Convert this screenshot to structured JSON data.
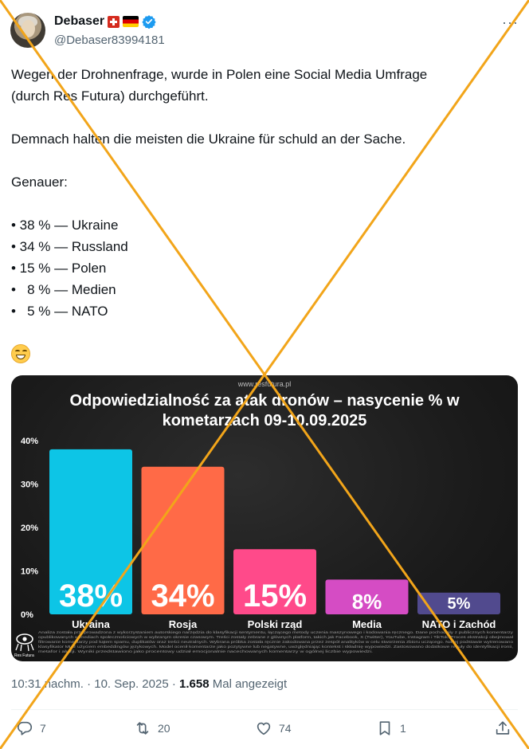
{
  "author": {
    "name": "Debaser",
    "handle": "@Debaser83994181",
    "more_label": "···"
  },
  "tweet": {
    "lines": [
      "Wegen der Drohnenfrage, wurde in Polen eine Social Media Umfrage",
      "(durch Res Futura) durchgeführt.",
      "",
      "Demnach halten die meisten die Ukraine für schuld an der Sache.",
      "",
      "Genauer:",
      "",
      "• 38 % — Ukraine",
      "• 34 % — Russland",
      "• 15 % — Polen",
      "•   8 % — Medien",
      "•   5 % — NATO"
    ]
  },
  "image": {
    "url_label": "www.resfutura.pl",
    "title_line1": "Odpowiedzialność za atak dronów – nasycenie % w",
    "title_line2": "kometarzach 09-10.09.2025",
    "brand": "Res Futura",
    "footnote_line1": "Analiza została przeprowadzona z wykorzystaniem autorskiego narzędzia do klasyfikacji sentymentu, łączącego metody uczenia maszynowego i kodowania ręcznego. Dane pochodziły z publicznych komentarzy",
    "footnote_line2": "opublikowanych w mediach społecznościowych w wybranym okresie czasowym. Treści zostały zebrane z głównych platform, takich jak Facebook, X (Twitter), YouTube, Instagram i TikTok. Proces ekstrakcji obejmował",
    "footnote_line3": "filtrowanie komentarzy pod kątem spamu, duplikatów oraz treści neutralnych. Wybrana próbka została ręcznie zakodowana przez zespół analityków w celu stworzenia zbioru uczącego. Na tej podstawie wytrenowano",
    "footnote_line4": "klasyfikator ML z użyciem embeddingów językowych. Model ocenił komentarze jako pozytywne lub negatywne, uwzględniając kontekst i składnię wypowiedzi. Zastosowano dodatkowe reguły do identyfikacji ironii,",
    "footnote_line5": "metafor i aluzji. Wyniki przedstawiono jako procentowy udział emocjonalnie nacechowanych komentarzy w ogólnej liczbie wypowiedzi."
  },
  "chart_data": {
    "type": "bar",
    "title": "Odpowiedzialność za atak dronów – nasycenie % w kometarzach 09-10.09.2025",
    "categories": [
      "Ukraina",
      "Rosja",
      "Polski rząd",
      "Media",
      "NATO i Zachód"
    ],
    "values": [
      38,
      34,
      15,
      8,
      5
    ],
    "value_labels": [
      "38%",
      "34%",
      "15%",
      "8%",
      "5%"
    ],
    "colors": [
      "#0dc5e6",
      "#ff6a47",
      "#ff4a8a",
      "#d54cc4",
      "#514a8e"
    ],
    "yticks": [
      "0%",
      "10%",
      "20%",
      "30%",
      "40%"
    ],
    "ylim": [
      0,
      40
    ],
    "grid": false,
    "xlabel": "",
    "ylabel": ""
  },
  "meta": {
    "time": "10:31 nachm.",
    "date": "10. Sep. 2025",
    "views": "1.658",
    "views_label": "Mal angezeigt"
  },
  "actions": {
    "replies": "7",
    "reposts": "20",
    "likes": "74",
    "bookmarks": "1"
  },
  "colors": {
    "text": "#0f1419",
    "secondary": "#536471",
    "verified": "#1d9bf0",
    "overlay_cross": "#f2a51a"
  }
}
